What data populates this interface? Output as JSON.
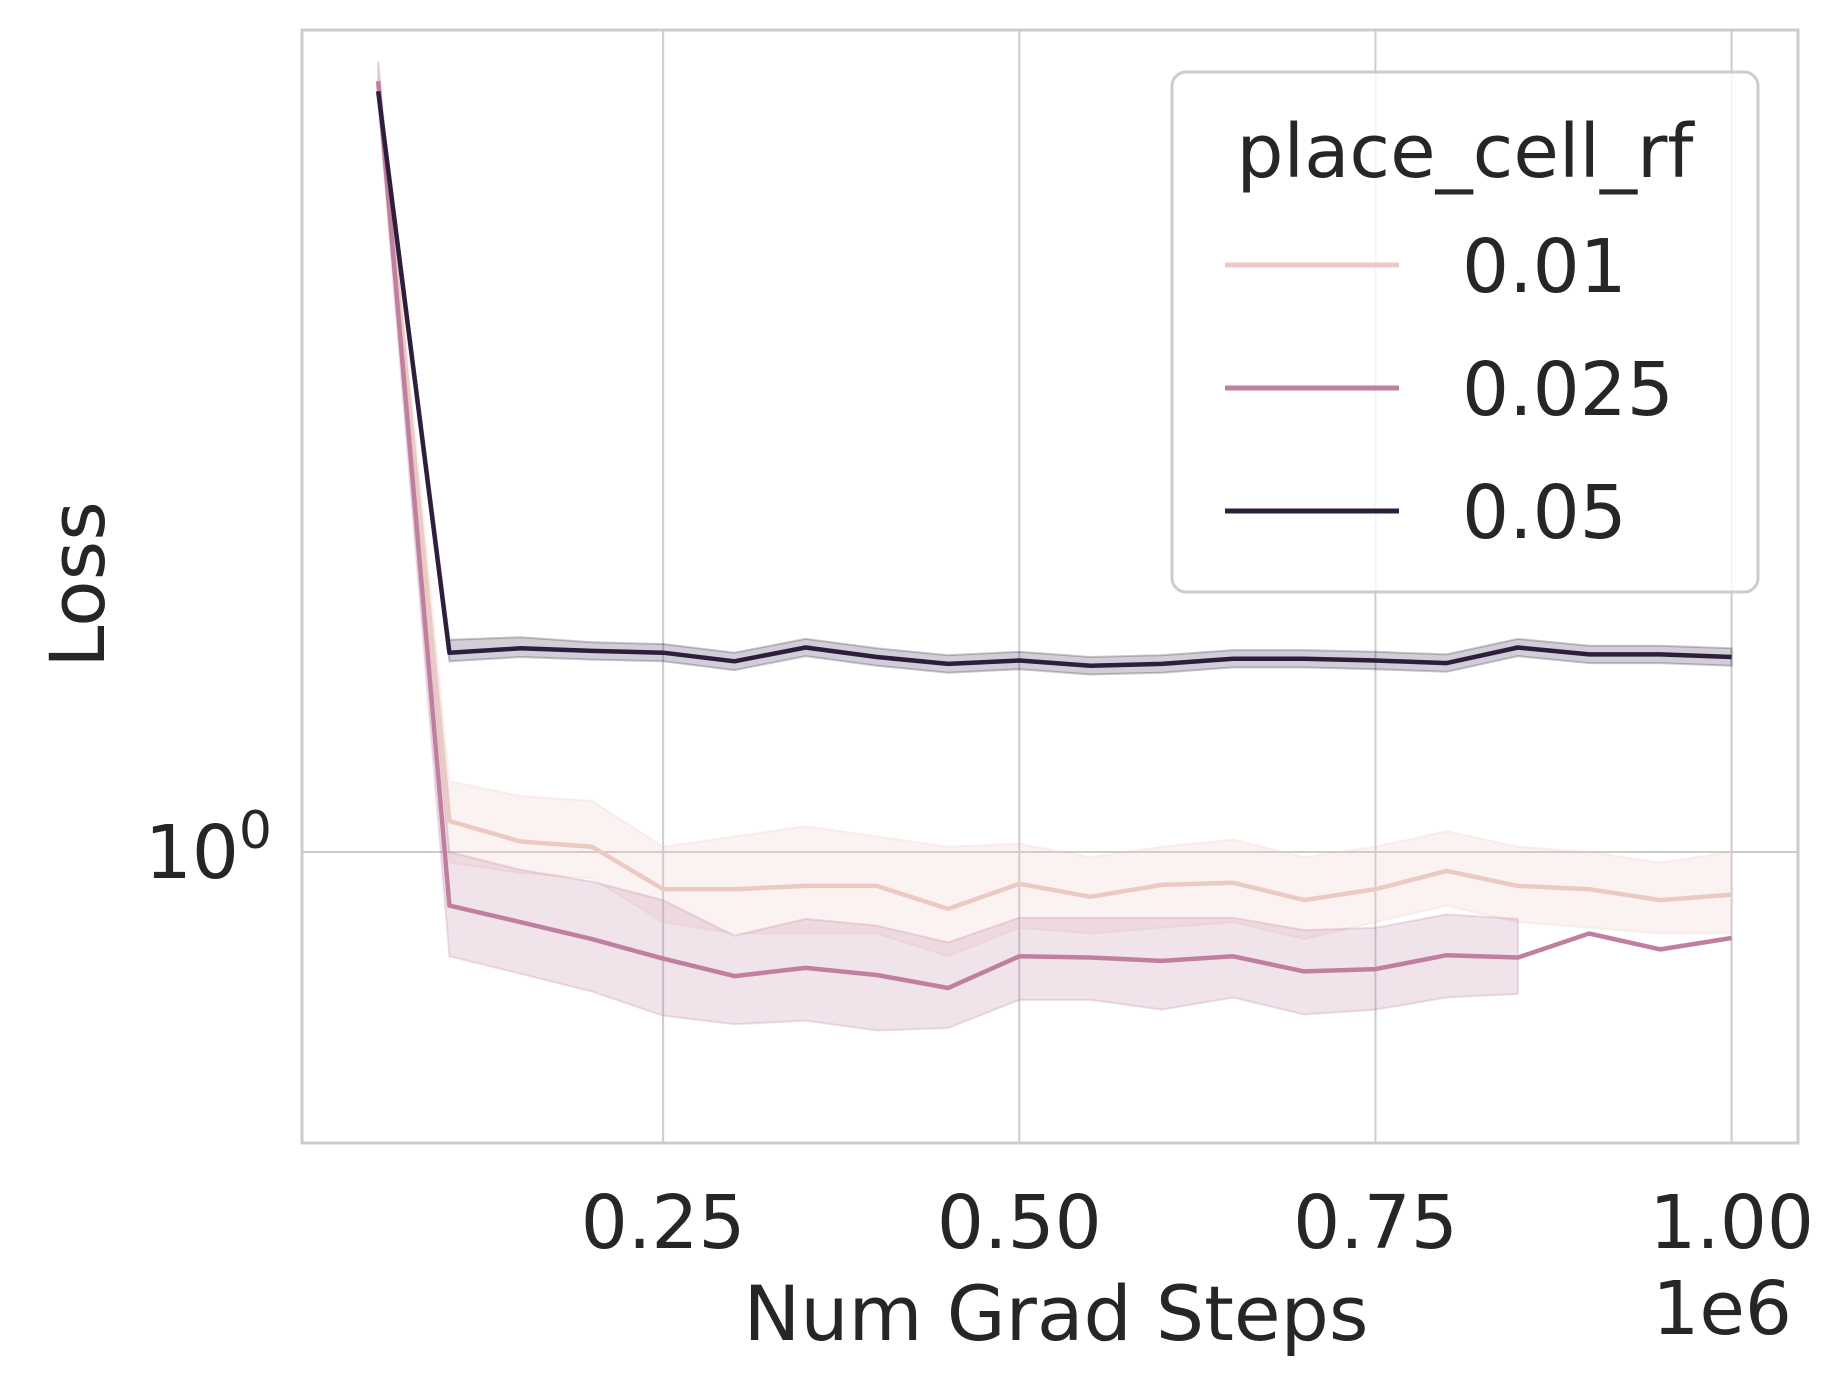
{
  "chart_data": {
    "type": "line",
    "xlabel": "Num Grad Steps",
    "ylabel": "Loss",
    "x_offset_label": "1e6",
    "x_ticks": [
      0.25,
      0.5,
      0.75,
      1.0
    ],
    "x_tick_labels": [
      "0.25",
      "0.50",
      "0.75",
      "1.00"
    ],
    "y_scale": "log",
    "y_ticks": [
      1.0
    ],
    "y_tick_labels": [
      {
        "base": "10",
        "exp": "0"
      }
    ],
    "xlim": [
      -0.0035,
      1.0466
    ],
    "ylim": [
      0.757,
      2.195
    ],
    "grid": true,
    "legend_title": "place_cell_rf",
    "legend_position": "top-right",
    "x": [
      0.05,
      0.1,
      0.15,
      0.2,
      0.25,
      0.3,
      0.35,
      0.4,
      0.45,
      0.5,
      0.55,
      0.6,
      0.65,
      0.7,
      0.75,
      0.8,
      0.85,
      0.9,
      0.95,
      1.0
    ],
    "series": [
      {
        "name": "0.01",
        "color": "#eccac4",
        "values": [
          2.09,
          1.03,
          1.01,
          1.005,
          0.965,
          0.965,
          0.968,
          0.968,
          0.947,
          0.97,
          0.958,
          0.969,
          0.971,
          0.955,
          0.965,
          0.982,
          0.968,
          0.965,
          0.955,
          0.96
        ],
        "ci_lower": [
          2.05,
          0.99,
          0.98,
          0.975,
          0.935,
          0.925,
          0.925,
          0.925,
          0.905,
          0.93,
          0.925,
          0.93,
          0.935,
          0.92,
          0.935,
          0.95,
          0.935,
          0.93,
          0.925,
          0.925
        ],
        "ci_upper": [
          2.13,
          1.07,
          1.055,
          1.05,
          1.005,
          1.015,
          1.025,
          1.015,
          1.005,
          1.008,
          0.995,
          1.005,
          1.012,
          0.995,
          1.005,
          1.02,
          1.005,
          1.0,
          0.99,
          1.0
        ]
      },
      {
        "name": "0.025",
        "color": "#c17f9f",
        "values": [
          2.09,
          0.95,
          0.935,
          0.92,
          0.903,
          0.888,
          0.895,
          0.889,
          0.878,
          0.905,
          0.904,
          0.901,
          0.905,
          0.892,
          0.894,
          0.906,
          0.904,
          0.925,
          0.911,
          0.921
        ],
        "ci_lower": [
          2.05,
          0.905,
          0.89,
          0.875,
          0.855,
          0.848,
          0.851,
          0.843,
          0.845,
          0.868,
          0.868,
          0.86,
          0.87,
          0.856,
          0.86,
          0.87,
          0.873,
          null,
          null,
          null
        ],
        "ci_upper": [
          2.13,
          1.0,
          0.983,
          0.972,
          0.955,
          0.923,
          0.938,
          0.932,
          0.917,
          0.939,
          0.939,
          0.939,
          0.939,
          0.928,
          0.93,
          0.942,
          0.938,
          null,
          null,
          null
        ]
      },
      {
        "name": "0.05",
        "color": "#2d1e3e",
        "values": [
          2.07,
          1.21,
          1.215,
          1.212,
          1.21,
          1.2,
          1.216,
          1.205,
          1.197,
          1.201,
          1.195,
          1.197,
          1.203,
          1.203,
          1.201,
          1.198,
          1.216,
          1.208,
          1.208,
          1.205
        ],
        "ci_lower": [
          2.05,
          1.2,
          1.205,
          1.202,
          1.2,
          1.19,
          1.206,
          1.195,
          1.187,
          1.191,
          1.185,
          1.187,
          1.193,
          1.193,
          1.191,
          1.188,
          1.206,
          1.198,
          1.198,
          1.195
        ],
        "ci_upper": [
          2.09,
          1.225,
          1.228,
          1.222,
          1.22,
          1.21,
          1.226,
          1.215,
          1.207,
          1.211,
          1.205,
          1.207,
          1.213,
          1.213,
          1.211,
          1.208,
          1.226,
          1.218,
          1.218,
          1.215
        ]
      }
    ]
  }
}
